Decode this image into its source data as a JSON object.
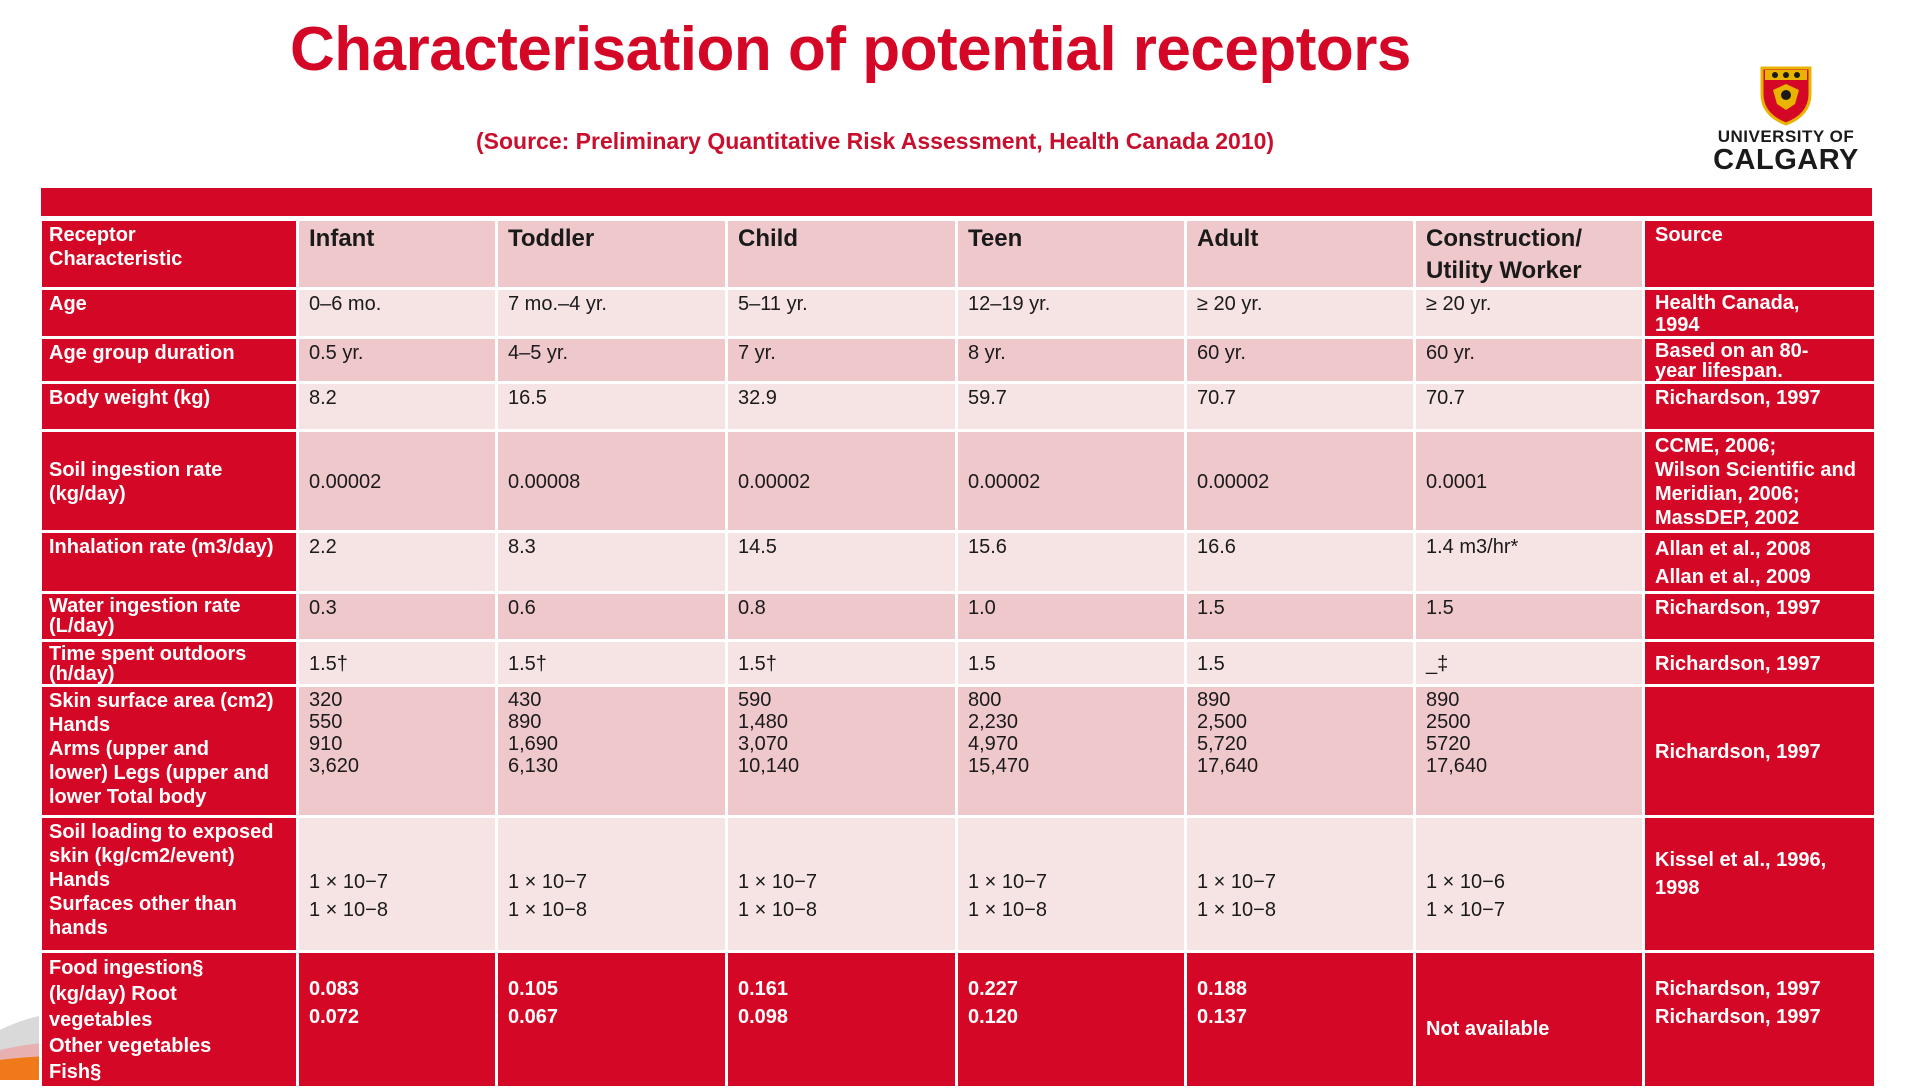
{
  "slide": {
    "title": "Characterisation of potential receptors",
    "subtitle": "(Source: Preliminary Quantitative Risk Assessment, Health Canada 2010)"
  },
  "logo": {
    "line1": "UNIVERSITY OF",
    "line2": "CALGARY"
  },
  "colors": {
    "accent_red": "#d40826",
    "row_dark": "#efc8cb",
    "row_light": "#f6e3e4"
  },
  "table": {
    "header": {
      "label": [
        "Receptor",
        "Characteristic"
      ],
      "cols": [
        [
          "Infant"
        ],
        [
          "Toddler"
        ],
        [
          "Child"
        ],
        [
          "Teen"
        ],
        [
          "Adult"
        ],
        [
          "Construction/",
          "Utility Worker"
        ]
      ],
      "source": [
        "Source"
      ]
    },
    "rows": [
      {
        "label": [
          "Age"
        ],
        "values": [
          [
            "0–6 mo."
          ],
          [
            "7 mo.–4 yr."
          ],
          [
            "5–11 yr."
          ],
          [
            "12–19 yr."
          ],
          [
            "≥ 20 yr."
          ],
          [
            "≥ 20 yr."
          ]
        ],
        "source": [
          "Health Canada,",
          "1994"
        ]
      },
      {
        "label": [
          "Age group duration"
        ],
        "values": [
          [
            "0.5 yr."
          ],
          [
            "4–5 yr."
          ],
          [
            "7 yr."
          ],
          [
            "8 yr."
          ],
          [
            "60 yr."
          ],
          [
            "60 yr."
          ]
        ],
        "source": [
          "Based on an 80-",
          "year lifespan."
        ]
      },
      {
        "label": [
          "Body weight (kg)"
        ],
        "values": [
          [
            "8.2"
          ],
          [
            "16.5"
          ],
          [
            "32.9"
          ],
          [
            "59.7"
          ],
          [
            "70.7"
          ],
          [
            "70.7"
          ]
        ],
        "source": [
          "Richardson, 1997"
        ]
      },
      {
        "label": [
          "Soil ingestion rate",
          "(kg/day)"
        ],
        "values": [
          [
            "0.00002"
          ],
          [
            "0.00008"
          ],
          [
            "0.00002"
          ],
          [
            "0.00002"
          ],
          [
            "0.00002"
          ],
          [
            "0.0001"
          ]
        ],
        "source": [
          "CCME, 2006;",
          "Wilson Scientific and",
          "Meridian, 2006;",
          "MassDEP, 2002"
        ]
      },
      {
        "label": [
          "Inhalation rate (m3/day)"
        ],
        "values": [
          [
            "2.2"
          ],
          [
            "8.3"
          ],
          [
            "14.5"
          ],
          [
            "15.6"
          ],
          [
            "16.6"
          ],
          [
            "1.4 m3/hr*"
          ]
        ],
        "source": [
          "Allan et al., 2008",
          "Allan et al., 2009"
        ]
      },
      {
        "label": [
          "Water ingestion rate",
          "(L/day)"
        ],
        "values": [
          [
            "0.3"
          ],
          [
            "0.6"
          ],
          [
            "0.8"
          ],
          [
            "1.0"
          ],
          [
            "1.5"
          ],
          [
            "1.5"
          ]
        ],
        "source": [
          "Richardson, 1997"
        ]
      },
      {
        "label": [
          "Time spent outdoors",
          "(h/day)"
        ],
        "values": [
          [
            "1.5†"
          ],
          [
            "1.5†"
          ],
          [
            "1.5†"
          ],
          [
            "1.5"
          ],
          [
            "1.5"
          ],
          [
            "_‡"
          ]
        ],
        "source": [
          "Richardson, 1997"
        ]
      },
      {
        "label": [
          "Skin surface area (cm2)",
          "Hands",
          "Arms (upper and",
          "lower) Legs (upper and",
          "lower Total body"
        ],
        "values": [
          [
            "320",
            "550",
            "910",
            "3,620"
          ],
          [
            "430",
            "890",
            "1,690",
            "6,130"
          ],
          [
            "590",
            "1,480",
            "3,070",
            "10,140"
          ],
          [
            "800",
            "2,230",
            "4,970",
            "15,470"
          ],
          [
            "890",
            "2,500",
            "5,720",
            "17,640"
          ],
          [
            "890",
            "2500",
            "5720",
            "17,640"
          ]
        ],
        "source": [
          "Richardson, 1997"
        ]
      },
      {
        "label": [
          "Soil loading to exposed",
          "skin (kg/cm2/event)",
          "Hands",
          "Surfaces other than",
          "hands"
        ],
        "values": [
          [
            "1  × 10−7",
            "1  ×  10−8"
          ],
          [
            "1  × 10−7",
            "1  × 10−8"
          ],
          [
            "1  ×  10−7",
            "1  ×  10−8"
          ],
          [
            "1  ×  10−7",
            "1  ×  10−8"
          ],
          [
            "1  ×  10−7",
            "1  ×  10−8"
          ],
          [
            "1  ×  10−6",
            "1  ×  10−7"
          ]
        ],
        "source": [
          "Kissel et al., 1996,",
          "1998"
        ]
      },
      {
        "label": [
          "Food ingestion§",
          "(kg/day) Root",
          "vegetables",
          "Other vegetables",
          "Fish§"
        ],
        "values": [
          [
            "0.083",
            "0.072"
          ],
          [
            "0.105",
            "0.067"
          ],
          [
            "0.161",
            "0.098"
          ],
          [
            "0.227",
            "0.120"
          ],
          [
            "0.188",
            "0.137"
          ],
          [
            "Not available"
          ]
        ],
        "source": [
          "Richardson, 1997",
          "Richardson, 1997"
        ]
      }
    ]
  }
}
